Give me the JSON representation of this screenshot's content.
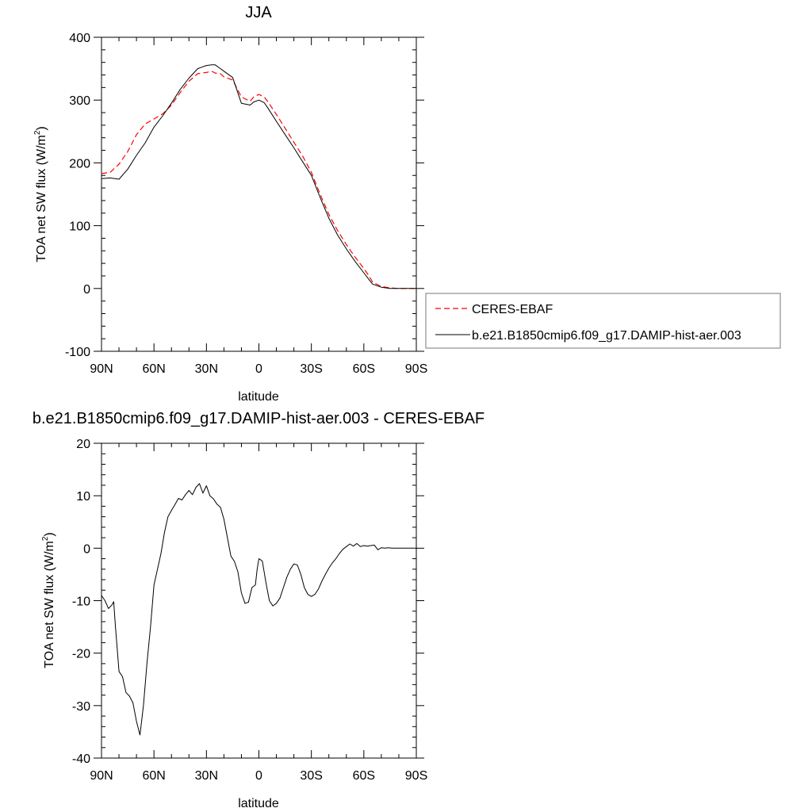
{
  "chart_data": [
    {
      "type": "line",
      "title": "JJA",
      "xlabel": "latitude",
      "ylabel": "TOA net SW flux (W/m",
      "ylabel_sup": "2",
      "ylabel_close": ")",
      "xlim": [
        90,
        -90
      ],
      "ylim": [
        -100,
        400
      ],
      "xticks": [
        90,
        60,
        30,
        0,
        -30,
        -60,
        -90
      ],
      "xtick_labels": [
        "90N",
        "60N",
        "30N",
        "0",
        "30S",
        "60S",
        "90S"
      ],
      "yticks": [
        -100,
        0,
        100,
        200,
        300,
        400
      ],
      "ytick_labels": [
        "-100",
        "0",
        "100",
        "200",
        "300",
        "400"
      ],
      "legend_position": "right",
      "series": [
        {
          "name": "CERES-EBAF",
          "color": "#ff0000",
          "dash": "dashed",
          "x": [
            90,
            85,
            80,
            75,
            70,
            65,
            60,
            55,
            50,
            45,
            40,
            35,
            30,
            27,
            25,
            22,
            20,
            15,
            10,
            5,
            3,
            0,
            -3,
            -5,
            -10,
            -15,
            -20,
            -25,
            -30,
            -35,
            -40,
            -45,
            -50,
            -55,
            -60,
            -63,
            -65,
            -70,
            -75,
            -80,
            -85,
            -90
          ],
          "y": [
            183,
            185,
            198,
            218,
            245,
            262,
            270,
            278,
            292,
            312,
            330,
            342,
            344,
            346,
            343,
            342,
            337,
            332,
            305,
            298,
            305,
            309,
            305,
            298,
            277,
            255,
            233,
            211,
            185,
            150,
            118,
            92,
            70,
            50,
            32,
            20,
            10,
            3,
            1,
            0,
            0,
            0
          ]
        },
        {
          "name": "b.e21.B1850cmip6.f09_g17.DAMIP-hist-aer.003",
          "color": "#000000",
          "dash": "solid",
          "x": [
            90,
            85,
            80,
            75,
            70,
            65,
            60,
            55,
            50,
            45,
            40,
            35,
            30,
            27,
            25,
            22,
            20,
            15,
            10,
            5,
            3,
            0,
            -3,
            -5,
            -10,
            -15,
            -20,
            -25,
            -30,
            -35,
            -40,
            -45,
            -50,
            -55,
            -60,
            -63,
            -65,
            -70,
            -75,
            -80,
            -85,
            -90
          ],
          "y": [
            175,
            176,
            174,
            190,
            212,
            232,
            257,
            275,
            295,
            317,
            335,
            350,
            355,
            356,
            356,
            350,
            346,
            336,
            295,
            292,
            297,
            300,
            296,
            288,
            266,
            245,
            224,
            202,
            180,
            145,
            112,
            85,
            63,
            43,
            25,
            14,
            7,
            2,
            0,
            0,
            0,
            0
          ]
        }
      ]
    },
    {
      "type": "line",
      "title": "b.e21.B1850cmip6.f09_g17.DAMIP-hist-aer.003 - CERES-EBAF",
      "xlabel": "latitude",
      "ylabel": "TOA net SW flux (W/m",
      "ylabel_sup": "2",
      "ylabel_close": ")",
      "xlim": [
        90,
        -90
      ],
      "ylim": [
        -40,
        20
      ],
      "xticks": [
        90,
        60,
        30,
        0,
        -30,
        -60,
        -90
      ],
      "xtick_labels": [
        "90N",
        "60N",
        "30N",
        "0",
        "30S",
        "60S",
        "90S"
      ],
      "yticks": [
        -40,
        -30,
        -20,
        -10,
        0,
        10,
        20
      ],
      "ytick_labels": [
        "-40",
        "-30",
        "-20",
        "-10",
        "0",
        "10",
        "20"
      ],
      "series": [
        {
          "color": "#000000",
          "dash": "solid",
          "x": [
            90,
            88,
            86,
            84,
            83,
            82,
            80,
            78,
            76,
            74,
            72,
            70,
            68,
            66,
            64,
            62,
            60,
            58,
            56,
            54,
            52,
            50,
            48,
            46,
            44,
            42,
            40,
            38,
            36,
            34,
            32,
            30,
            28,
            26,
            24,
            22,
            20,
            18,
            16,
            14,
            12,
            10,
            8,
            6,
            4,
            2,
            1,
            0,
            -1,
            -2,
            -4,
            -6,
            -8,
            -10,
            -12,
            -14,
            -16,
            -18,
            -20,
            -22,
            -24,
            -26,
            -28,
            -30,
            -32,
            -34,
            -36,
            -38,
            -40,
            -42,
            -44,
            -46,
            -48,
            -50,
            -52,
            -54,
            -56,
            -58,
            -60,
            -62,
            -64,
            -66,
            -68,
            -70,
            -72,
            -74,
            -76,
            -78,
            -80,
            -82,
            -84,
            -86,
            -88,
            -90
          ],
          "y": [
            -9.0,
            -10.0,
            -11.5,
            -10.8,
            -10.2,
            -15.0,
            -23.5,
            -24.5,
            -27.5,
            -28.2,
            -29.5,
            -33.0,
            -35.6,
            -30.0,
            -22.0,
            -15.0,
            -7.0,
            -4.0,
            -1.0,
            3.0,
            6.0,
            7.2,
            8.3,
            9.5,
            9.2,
            10.2,
            11.0,
            10.2,
            11.6,
            12.3,
            10.5,
            11.9,
            10.0,
            9.4,
            8.4,
            7.8,
            5.5,
            2.0,
            -1.5,
            -2.5,
            -4.5,
            -8.5,
            -10.5,
            -10.3,
            -7.5,
            -7.0,
            -4.0,
            -2.0,
            -2.2,
            -2.5,
            -6.5,
            -10.0,
            -11.0,
            -10.5,
            -9.5,
            -7.5,
            -5.5,
            -4.0,
            -3.0,
            -3.2,
            -5.0,
            -7.5,
            -8.8,
            -9.2,
            -8.8,
            -7.8,
            -6.3,
            -5.0,
            -3.8,
            -2.8,
            -2.0,
            -1.0,
            -0.2,
            0.3,
            0.8,
            0.4,
            0.9,
            0.3,
            0.5,
            0.4,
            0.5,
            0.6,
            -0.3,
            0.1,
            0.0,
            0.1,
            0.0,
            0.0,
            0.0,
            0.0,
            0.0,
            0.0,
            0.0,
            0.0
          ]
        }
      ]
    }
  ]
}
